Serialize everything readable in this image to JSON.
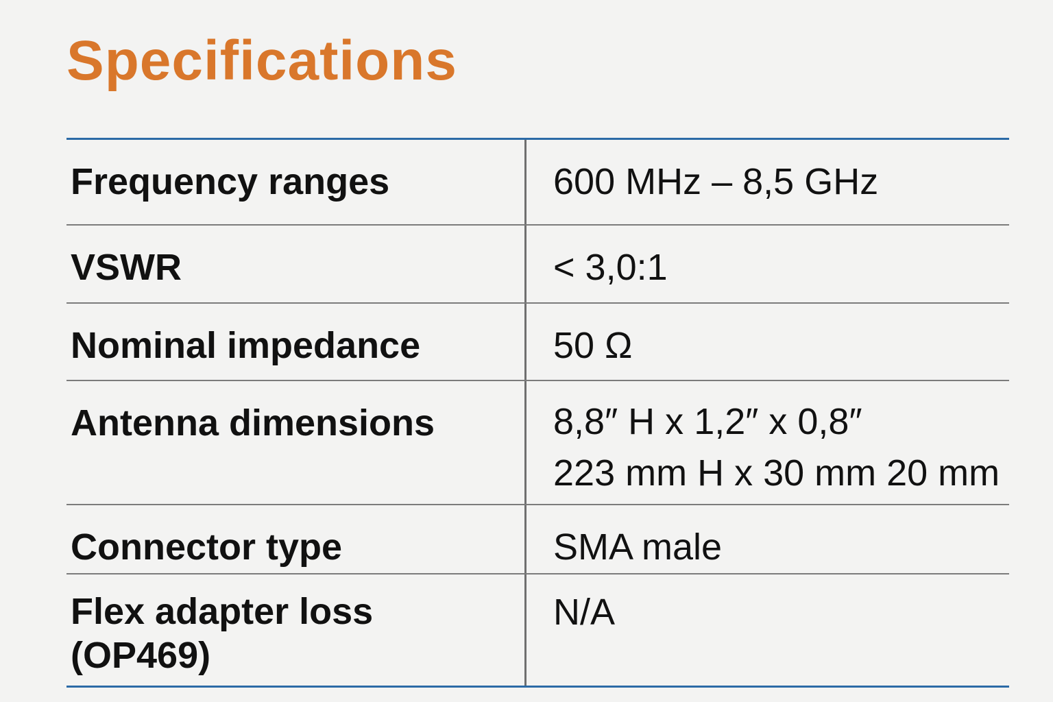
{
  "header": {
    "title": "Specifications"
  },
  "table": {
    "rows": [
      {
        "label": [
          "Frequency ranges"
        ],
        "value": [
          "600 MHz – 8,5 GHz"
        ]
      },
      {
        "label": [
          "VSWR"
        ],
        "value": [
          "< 3,0:1"
        ]
      },
      {
        "label": [
          "Nominal impedance"
        ],
        "value": [
          "50 Ω"
        ]
      },
      {
        "label": [
          "Antenna dimensions"
        ],
        "value": [
          "8,8″ H x 1,2″ x 0,8″",
          "223 mm H x 30 mm 20 mm"
        ]
      },
      {
        "label": [
          "Connector type"
        ],
        "value": [
          "SMA male"
        ]
      },
      {
        "label": [
          "Flex adapter loss",
          "(OP469)"
        ],
        "value": [
          "N/A"
        ]
      }
    ]
  }
}
